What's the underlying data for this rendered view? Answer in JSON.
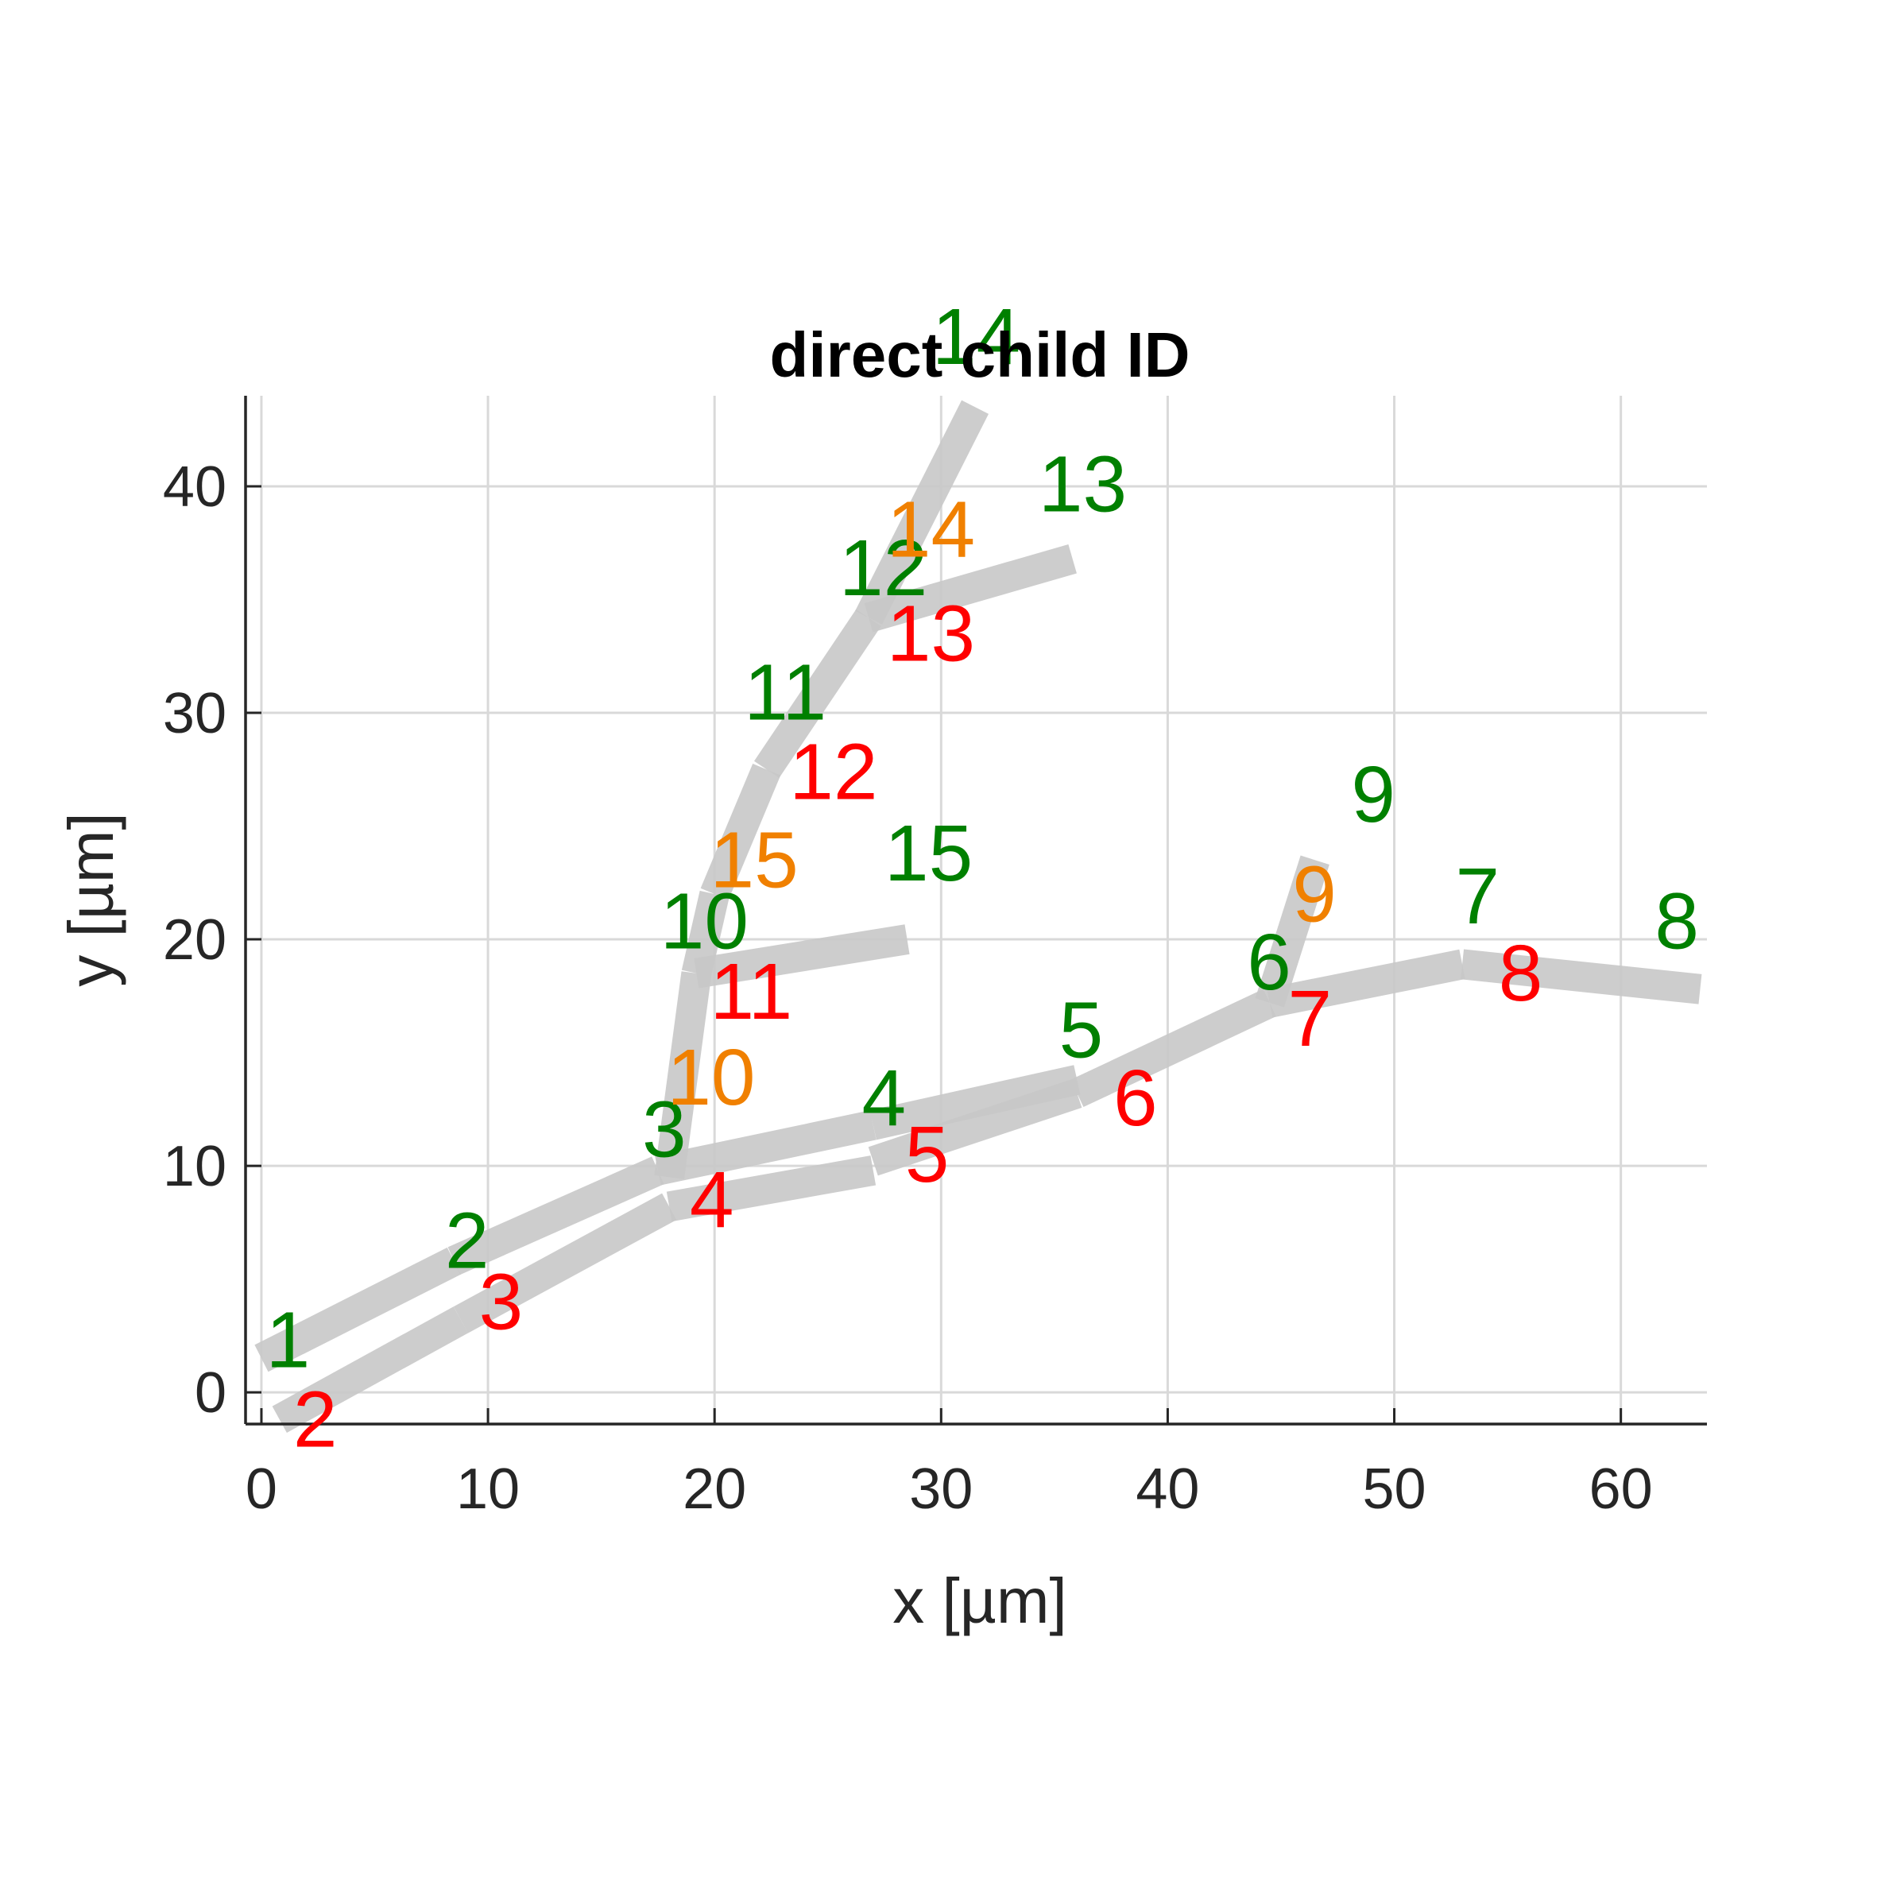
{
  "chart_data": {
    "type": "line",
    "title": "direct child ID",
    "xlabel": "x [µm]",
    "ylabel": "y [µm]",
    "xlim": [
      -0.7,
      63.8
    ],
    "ylim": [
      -1.4,
      44
    ],
    "xticks": [
      0,
      10,
      20,
      30,
      40,
      50,
      60
    ],
    "yticks": [
      0,
      10,
      20,
      30,
      40
    ],
    "grid": true,
    "colors": {
      "segment": "#c8c8c8",
      "start_label": "#008000",
      "end_label": "#ff0000",
      "child_label": "#f08000",
      "grid": "#d9d9d9",
      "axis": "#262626"
    },
    "segments": [
      {
        "id": 1,
        "x": [
          0,
          8.5
        ],
        "y": [
          1.5,
          5.8
        ]
      },
      {
        "id": 2,
        "x": [
          0.8,
          8.8
        ],
        "y": [
          -1.2,
          3.2
        ]
      },
      {
        "id": 3,
        "x": [
          8.5,
          17.5
        ],
        "y": [
          5.8,
          9.8
        ]
      },
      {
        "id": 4,
        "x": [
          8.8,
          18
        ],
        "y": [
          3.2,
          8.2
        ]
      },
      {
        "id": 5,
        "x": [
          18,
          27
        ],
        "y": [
          8.2,
          9.8
        ]
      },
      {
        "id": 6,
        "x": [
          17.5,
          27
        ],
        "y": [
          9.8,
          11.8
        ]
      },
      {
        "id": 7,
        "x": [
          27,
          36
        ],
        "y": [
          10.2,
          13.2
        ]
      },
      {
        "id": 8,
        "x": [
          27,
          36
        ],
        "y": [
          11.8,
          13.8
        ]
      },
      {
        "id": 9,
        "x": [
          36,
          44.5
        ],
        "y": [
          13.2,
          17.2
        ]
      },
      {
        "id": 10,
        "x": [
          44.5,
          53
        ],
        "y": [
          17.2,
          18.9
        ]
      },
      {
        "id": 11,
        "x": [
          53,
          63.5
        ],
        "y": [
          18.9,
          17.8
        ]
      },
      {
        "id": 12,
        "x": [
          44.5,
          46.5
        ],
        "y": [
          17.2,
          23.5
        ]
      },
      {
        "id": 13,
        "x": [
          18,
          19.2
        ],
        "y": [
          9.5,
          18.5
        ]
      },
      {
        "id": 14,
        "x": [
          19.2,
          20
        ],
        "y": [
          18.5,
          22
        ]
      },
      {
        "id": 15,
        "x": [
          20,
          22.3
        ],
        "y": [
          22,
          27.5
        ]
      },
      {
        "id": 16,
        "x": [
          22.3,
          26.8
        ],
        "y": [
          27.5,
          34.2
        ]
      },
      {
        "id": 17,
        "x": [
          26.8,
          31.5
        ],
        "y": [
          34.2,
          43.5
        ]
      },
      {
        "id": 18,
        "x": [
          26.8,
          35.8
        ],
        "y": [
          34.2,
          36.8
        ]
      },
      {
        "id": 19,
        "x": [
          19.2,
          28.5
        ],
        "y": [
          18.5,
          20
        ]
      }
    ],
    "labels": [
      {
        "text": "1",
        "x": 0.2,
        "y": 1.1,
        "series": "start"
      },
      {
        "text": "2",
        "x": 1.4,
        "y": -2.4,
        "series": "end"
      },
      {
        "text": "2",
        "x": 8.1,
        "y": 5.5,
        "series": "start"
      },
      {
        "text": "3",
        "x": 9.6,
        "y": 2.8,
        "series": "end"
      },
      {
        "text": "3",
        "x": 16.8,
        "y": 10.4,
        "series": "start"
      },
      {
        "text": "4",
        "x": 18.9,
        "y": 7.3,
        "series": "end"
      },
      {
        "text": "10",
        "x": 17.9,
        "y": 12.7,
        "series": "child"
      },
      {
        "text": "4",
        "x": 26.5,
        "y": 11.8,
        "series": "start"
      },
      {
        "text": "5",
        "x": 28.4,
        "y": 9.3,
        "series": "end"
      },
      {
        "text": "5",
        "x": 35.2,
        "y": 14.8,
        "series": "start"
      },
      {
        "text": "6",
        "x": 37.6,
        "y": 11.8,
        "series": "end"
      },
      {
        "text": "6",
        "x": 43.5,
        "y": 17.8,
        "series": "start"
      },
      {
        "text": "7",
        "x": 45.3,
        "y": 15.3,
        "series": "end"
      },
      {
        "text": "9",
        "x": 45.5,
        "y": 20.8,
        "series": "child"
      },
      {
        "text": "9",
        "x": 48.1,
        "y": 25.2,
        "series": "start"
      },
      {
        "text": "7",
        "x": 52.7,
        "y": 20.7,
        "series": "start"
      },
      {
        "text": "8",
        "x": 54.6,
        "y": 17.3,
        "series": "end"
      },
      {
        "text": "8",
        "x": 61.5,
        "y": 19.6,
        "series": "start"
      },
      {
        "text": "10",
        "x": 17.6,
        "y": 19.6,
        "series": "start"
      },
      {
        "text": "11",
        "x": 19.8,
        "y": 16.5,
        "series": "end"
      },
      {
        "text": "15",
        "x": 19.8,
        "y": 22.3,
        "series": "child"
      },
      {
        "text": "15",
        "x": 27.5,
        "y": 22.6,
        "series": "start"
      },
      {
        "text": "11",
        "x": 21.3,
        "y": 29.7,
        "series": "start"
      },
      {
        "text": "12",
        "x": 23.3,
        "y": 26.2,
        "series": "end"
      },
      {
        "text": "12",
        "x": 25.5,
        "y": 35.2,
        "series": "start"
      },
      {
        "text": "13",
        "x": 27.6,
        "y": 32.3,
        "series": "end"
      },
      {
        "text": "14",
        "x": 27.6,
        "y": 36.9,
        "series": "child"
      },
      {
        "text": "13",
        "x": 34.3,
        "y": 38.9,
        "series": "start"
      },
      {
        "text": "14",
        "x": 29.6,
        "y": 45.4,
        "series": "start"
      }
    ]
  }
}
